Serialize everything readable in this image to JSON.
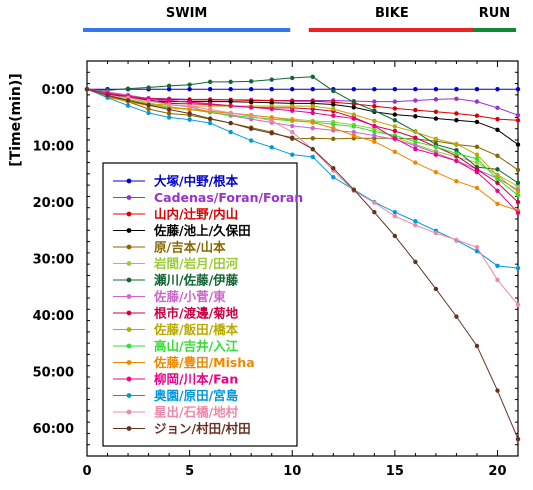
{
  "chart_data": {
    "type": "line",
    "ylabel": "[Time(min)]",
    "xlim": [
      0,
      21
    ],
    "ylim": [
      -5,
      65
    ],
    "y_inverted": true,
    "x_ticks": [
      "0",
      "5",
      "10",
      "15",
      "20"
    ],
    "x_tick_values": [
      0,
      5,
      10,
      15,
      20
    ],
    "y_ticks": [
      "0:00",
      "10:00",
      "20:00",
      "30:00",
      "40:00",
      "50:00",
      "60:00"
    ],
    "y_tick_values": [
      0,
      10,
      20,
      30,
      40,
      50,
      60
    ],
    "segments": [
      {
        "label": "SWIM",
        "from": 0,
        "to": 10,
        "color": "#3377ee"
      },
      {
        "label": "BIKE",
        "from": 11,
        "to": 19,
        "color": "#ee2222"
      },
      {
        "label": "RUN",
        "from": 19,
        "to": 21,
        "color": "#118833"
      }
    ],
    "x": [
      0,
      1,
      2,
      3,
      4,
      5,
      6,
      7,
      8,
      9,
      10,
      11,
      12,
      13,
      14,
      15,
      16,
      17,
      18,
      19,
      20,
      21
    ],
    "series": [
      {
        "name": "大塚/中野/根本",
        "color": "#0000cc",
        "values": [
          0,
          0,
          0,
          0,
          0,
          0,
          0,
          0,
          0,
          0,
          0,
          0,
          0,
          0,
          0,
          0,
          0,
          0,
          0,
          0,
          0,
          0
        ]
      },
      {
        "name": "Cadenas/Foran/Foran",
        "color": "#9933cc",
        "values": [
          0,
          0.7,
          1.2,
          1.6,
          1.7,
          1.8,
          1.8,
          1.9,
          1.9,
          2,
          2,
          2,
          2,
          2.1,
          2.2,
          2.2,
          2,
          1.8,
          1.7,
          2.2,
          3.3,
          4.6
        ]
      },
      {
        "name": "山内/辻野/内山",
        "color": "#dd0000",
        "values": [
          0,
          0.7,
          1.3,
          1.7,
          1.8,
          1.9,
          1.9,
          1.9,
          2,
          2,
          2.1,
          2.1,
          2.3,
          2.6,
          3,
          3.4,
          3.7,
          4,
          4.3,
          4.7,
          5.3,
          5.5
        ]
      },
      {
        "name": "佐藤/池上/久保田",
        "color": "#000000",
        "values": [
          0,
          0.8,
          1.5,
          2,
          2.2,
          2.2,
          2.2,
          2.2,
          2.3,
          2.4,
          2.5,
          2.5,
          2.7,
          3.2,
          4,
          4.5,
          4.8,
          5.2,
          5.5,
          5.8,
          7.2,
          9.8
        ]
      },
      {
        "name": "原/吉本/山本",
        "color": "#886600",
        "values": [
          0,
          1.2,
          2.2,
          3.5,
          4.3,
          4.6,
          5.3,
          6,
          6.8,
          7.6,
          8.8,
          8.7,
          8.8,
          8.7,
          8.7,
          8.7,
          8.8,
          9.2,
          9.8,
          10.2,
          11.8,
          14.3
        ]
      },
      {
        "name": "岩間/岩月/田河",
        "color": "#99cc33",
        "values": [
          0,
          0.7,
          1.5,
          2.4,
          3.2,
          3.5,
          3.9,
          4.2,
          4.6,
          5,
          5.3,
          5.6,
          5.8,
          6.3,
          7,
          8.5,
          9.8,
          11,
          12,
          13,
          15.2,
          17.2
        ]
      },
      {
        "name": "瀬川/佐藤/伊藤",
        "color": "#116633",
        "values": [
          0,
          0.2,
          -0.1,
          -0.3,
          -0.6,
          -0.8,
          -1.3,
          -1.3,
          -1.4,
          -1.7,
          -2,
          -2.2,
          0.3,
          2.3,
          3.8,
          5.5,
          7.5,
          9.8,
          10.8,
          13.8,
          14.2,
          16.6
        ]
      },
      {
        "name": "佐藤/小菅/東",
        "color": "#cc66cc",
        "values": [
          0,
          0.5,
          1,
          1.7,
          2.7,
          3.1,
          4.1,
          4.7,
          5.3,
          5.9,
          6.5,
          6.9,
          7.3,
          7.6,
          8.2,
          8.9,
          10,
          11.3,
          12.7,
          14.2,
          15.8,
          17.8
        ]
      },
      {
        "name": "根市/渡邊/菊地",
        "color": "#cc0044",
        "values": [
          0,
          0.9,
          1.3,
          1.9,
          2.5,
          2.6,
          2.7,
          3,
          3.2,
          3.3,
          3.3,
          3.5,
          3.9,
          5,
          6.5,
          7.4,
          8.6,
          10.2,
          11.8,
          14.2,
          16.6,
          20
        ]
      },
      {
        "name": "佐藤/飯田/橋本",
        "color": "#bbaa00",
        "values": [
          0,
          1,
          1.8,
          2.6,
          2.8,
          3,
          3,
          3,
          3,
          3,
          3,
          3,
          3.5,
          4.5,
          5.6,
          6.6,
          7.6,
          8.8,
          9.7,
          11.6,
          15.3,
          18.2
        ]
      },
      {
        "name": "高山/吉井/入江",
        "color": "#33dd33",
        "values": [
          0,
          1,
          1.9,
          2.7,
          3.1,
          3.6,
          4.1,
          4.6,
          5,
          5.3,
          5.6,
          5.8,
          6.2,
          6.6,
          7.5,
          8.2,
          9.3,
          10.2,
          11.4,
          12.3,
          15.9,
          18.8
        ]
      },
      {
        "name": "佐藤/豊田/Misha",
        "color": "#ee8800",
        "values": [
          0,
          1.4,
          2.2,
          2.9,
          3.3,
          3.6,
          3.9,
          4.3,
          4.6,
          5,
          5.5,
          5.9,
          6.9,
          8.2,
          9.3,
          11.1,
          13,
          14.7,
          16.3,
          17.5,
          20.3,
          21.5
        ]
      },
      {
        "name": "柳岡/川本/Fan",
        "color": "#ee0088",
        "values": [
          0,
          0.7,
          1.2,
          1.7,
          2,
          2.3,
          2.6,
          2.9,
          3.2,
          3.5,
          3.8,
          4.2,
          4.7,
          5.2,
          6.5,
          8.7,
          10.6,
          11.6,
          12.7,
          14.7,
          18,
          21.9
        ]
      },
      {
        "name": "奥園/原田/宮島",
        "color": "#0099dd",
        "values": [
          0,
          1.5,
          2.9,
          4.2,
          5,
          5.4,
          6,
          7.6,
          9.1,
          10.3,
          11.6,
          12,
          15.6,
          17.8,
          20,
          21.8,
          23.4,
          25.1,
          26.8,
          28.7,
          31.3,
          31.7
        ]
      },
      {
        "name": "星出/石橋/地村",
        "color": "#ee88aa",
        "values": [
          0,
          1.2,
          1.5,
          2.1,
          2.7,
          3,
          3.6,
          4.2,
          4.8,
          5.6,
          7.6,
          10.7,
          14.4,
          18,
          20.1,
          22.5,
          24.1,
          25.5,
          26.7,
          28,
          33.8,
          38.2
        ]
      },
      {
        "name": "ジョン/村田/村田",
        "color": "#663322",
        "values": [
          0,
          1.1,
          2,
          2.8,
          3.6,
          4.3,
          5.2,
          6,
          7,
          7.8,
          8.6,
          10.6,
          14,
          17.8,
          21.8,
          26,
          30.6,
          35.4,
          40.3,
          45.5,
          53.4,
          62
        ]
      }
    ]
  }
}
